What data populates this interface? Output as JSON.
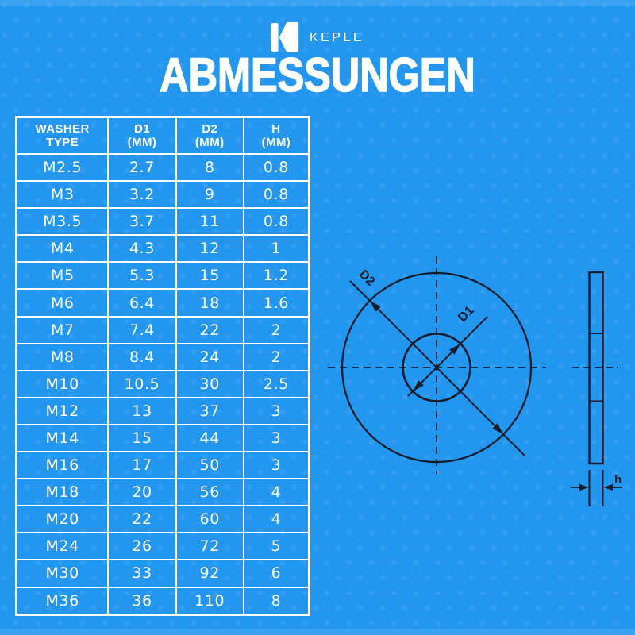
{
  "brand": {
    "name": "KEPLE",
    "logo_icon": "keple-k-mark"
  },
  "title": "ABMESSUNGEN",
  "colors": {
    "background": "#2396f0",
    "line_art": "#121c2b",
    "text": "#ffffff"
  },
  "table": {
    "headers": [
      [
        "WASHER",
        "TYPE"
      ],
      [
        "D1",
        "(MM)"
      ],
      [
        "D2",
        "(MM)"
      ],
      [
        "H",
        "(MM)"
      ]
    ],
    "rows": [
      [
        "M2.5",
        "2.7",
        "8",
        "0.8"
      ],
      [
        "M3",
        "3.2",
        "9",
        "0.8"
      ],
      [
        "M3.5",
        "3.7",
        "11",
        "0.8"
      ],
      [
        "M4",
        "4.3",
        "12",
        "1"
      ],
      [
        "M5",
        "5.3",
        "15",
        "1.2"
      ],
      [
        "M6",
        "6.4",
        "18",
        "1.6"
      ],
      [
        "M7",
        "7.4",
        "22",
        "2"
      ],
      [
        "M8",
        "8.4",
        "24",
        "2"
      ],
      [
        "M10",
        "10.5",
        "30",
        "2.5"
      ],
      [
        "M12",
        "13",
        "37",
        "3"
      ],
      [
        "M14",
        "15",
        "44",
        "3"
      ],
      [
        "M16",
        "17",
        "50",
        "3"
      ],
      [
        "M18",
        "20",
        "56",
        "4"
      ],
      [
        "M20",
        "22",
        "60",
        "4"
      ],
      [
        "M24",
        "26",
        "72",
        "5"
      ],
      [
        "M30",
        "33",
        "92",
        "6"
      ],
      [
        "M36",
        "36",
        "110",
        "8"
      ]
    ]
  },
  "diagram": {
    "outer_diameter_label": "D2",
    "inner_diameter_label": "D1",
    "thickness_label": "h"
  }
}
